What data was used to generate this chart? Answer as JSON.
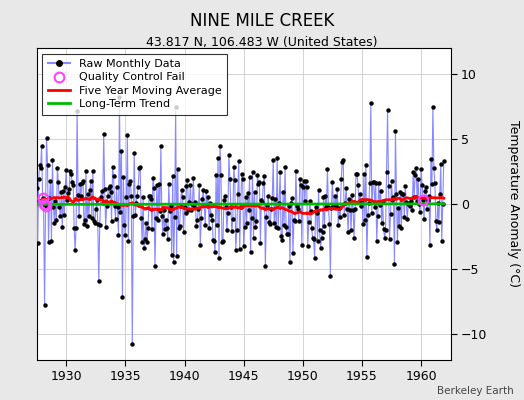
{
  "title": "NINE MILE CREEK",
  "subtitle": "43.817 N, 106.483 W (United States)",
  "ylabel": "Temperature Anomaly (°C)",
  "watermark": "Berkeley Earth",
  "xlim": [
    1927.5,
    1962.5
  ],
  "ylim": [
    -12,
    12
  ],
  "yticks": [
    -10,
    -5,
    0,
    5,
    10
  ],
  "xticks": [
    1930,
    1935,
    1940,
    1945,
    1950,
    1955,
    1960
  ],
  "start_year": 1927.5,
  "end_year": 1962.0,
  "background_color": "#e8e8e8",
  "plot_bg_color": "#ffffff",
  "raw_line_color": "#8888ff",
  "raw_dot_color": "#000000",
  "qc_color": "#ff44ff",
  "moving_avg_color": "#ff0000",
  "trend_color": "#00bb00",
  "title_fontsize": 12,
  "subtitle_fontsize": 9,
  "legend_fontsize": 8,
  "tick_fontsize": 9,
  "seed": 17
}
